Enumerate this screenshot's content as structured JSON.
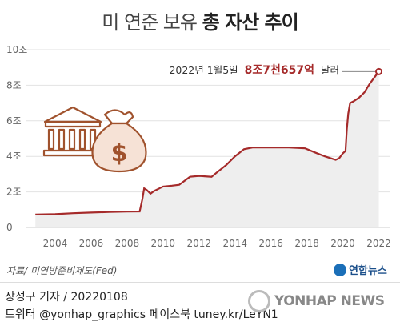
{
  "title": {
    "light": "미 연준 보유",
    "bold": "총 자산 추이"
  },
  "annotation": {
    "prefix": "2022년 1월5일",
    "value": "8조7천657억",
    "suffix": "달러"
  },
  "source": "자료/ 미연방준비제도(Fed)",
  "brand": "연합뉴스",
  "credit_line1": "장성구 기자 / 20220108",
  "credit_line2": "트위터 @yonhap_graphics  페이스북 tuney.kr/LeYN1",
  "watermark": "YONHAP NEWS",
  "colors": {
    "line": "#a52a2a",
    "annotation": "#a52a2a",
    "illustration": "#a0522d",
    "grid": "#e2e2e2",
    "area": "#eeeeee"
  },
  "chart_data": {
    "type": "line",
    "title": "미 연준 보유 총 자산 추이",
    "unit": "조 달러",
    "xlim": [
      2002.4,
      2022.6
    ],
    "ylim": [
      0,
      10
    ],
    "x_ticks": [
      2004,
      2006,
      2008,
      2010,
      2012,
      2014,
      2016,
      2018,
      2020,
      2022
    ],
    "y_ticks": [
      {
        "value": 0,
        "label": "0"
      },
      {
        "value": 2,
        "label": "2조"
      },
      {
        "value": 4,
        "label": "4조"
      },
      {
        "value": 6,
        "label": "6조"
      },
      {
        "value": 8,
        "label": "8조"
      },
      {
        "value": 10,
        "label": "10조"
      }
    ],
    "series": [
      {
        "points": [
          [
            2002.9,
            0.73
          ],
          [
            2004.0,
            0.75
          ],
          [
            2005.0,
            0.8
          ],
          [
            2006.0,
            0.84
          ],
          [
            2007.0,
            0.87
          ],
          [
            2008.0,
            0.89
          ],
          [
            2008.7,
            0.9
          ],
          [
            2008.85,
            1.6
          ],
          [
            2008.95,
            2.2
          ],
          [
            2009.1,
            2.1
          ],
          [
            2009.3,
            1.9
          ],
          [
            2009.5,
            2.05
          ],
          [
            2009.8,
            2.2
          ],
          [
            2010.0,
            2.3
          ],
          [
            2010.5,
            2.35
          ],
          [
            2010.9,
            2.4
          ],
          [
            2011.5,
            2.85
          ],
          [
            2012.0,
            2.9
          ],
          [
            2012.7,
            2.85
          ],
          [
            2013.0,
            3.1
          ],
          [
            2013.5,
            3.5
          ],
          [
            2014.0,
            4.0
          ],
          [
            2014.5,
            4.4
          ],
          [
            2015.0,
            4.5
          ],
          [
            2016.0,
            4.5
          ],
          [
            2017.0,
            4.5
          ],
          [
            2017.9,
            4.45
          ],
          [
            2018.5,
            4.2
          ],
          [
            2019.0,
            4.0
          ],
          [
            2019.6,
            3.8
          ],
          [
            2019.8,
            3.9
          ],
          [
            2020.0,
            4.17
          ],
          [
            2020.15,
            4.3
          ],
          [
            2020.22,
            5.5
          ],
          [
            2020.3,
            6.4
          ],
          [
            2020.4,
            7.0
          ],
          [
            2020.6,
            7.1
          ],
          [
            2020.9,
            7.3
          ],
          [
            2021.2,
            7.6
          ],
          [
            2021.5,
            8.1
          ],
          [
            2021.8,
            8.5
          ],
          [
            2022.0,
            8.77
          ]
        ]
      }
    ],
    "highlight_point": {
      "x": 2022.0,
      "y": 8.7657
    }
  }
}
